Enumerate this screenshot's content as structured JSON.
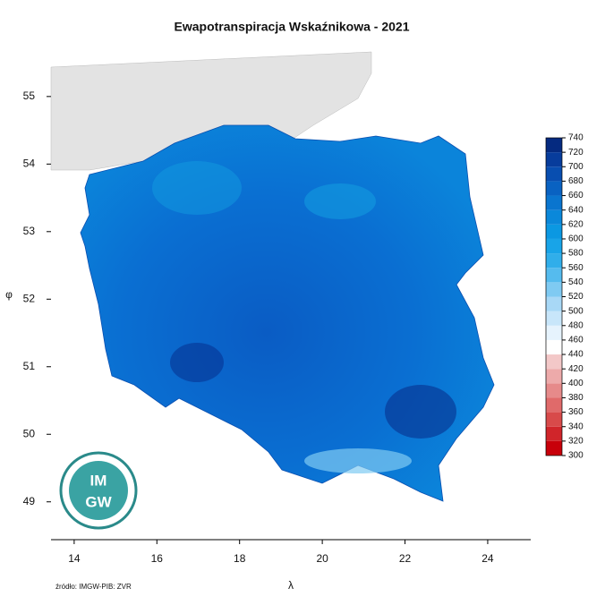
{
  "title": "Ewapotranspiracja Wskaźnikowa - 2021",
  "x_axis": {
    "label": "λ",
    "lim": [
      13.44,
      25.04
    ],
    "ticks": [
      14,
      16,
      18,
      20,
      22,
      24
    ]
  },
  "y_axis": {
    "label": "φ",
    "lim": [
      48.44,
      55.7
    ],
    "ticks": [
      49,
      50,
      51,
      52,
      53,
      54,
      55
    ]
  },
  "colorbar": {
    "ticks": [
      300,
      320,
      340,
      360,
      380,
      400,
      420,
      440,
      460,
      480,
      500,
      520,
      540,
      560,
      580,
      600,
      620,
      640,
      660,
      680,
      700,
      720,
      740
    ],
    "colors": [
      "#c8000a",
      "#d0252a",
      "#d84a4a",
      "#e06a6a",
      "#e68a8a",
      "#edaaaa",
      "#f3c8c8",
      "#ffffff",
      "#e6f3fd",
      "#c8e6fa",
      "#a8d8f6",
      "#7fcaf2",
      "#55bbee",
      "#30aeea",
      "#18a4e8",
      "#0b98e2",
      "#0a88da",
      "#0a75cf",
      "#0962c2",
      "#084eb0",
      "#073c9c",
      "#052a80"
    ]
  },
  "logo": {
    "top": "IM",
    "bottom": "GW"
  },
  "source": "źródło: IMGW-PIB: ZVR"
}
